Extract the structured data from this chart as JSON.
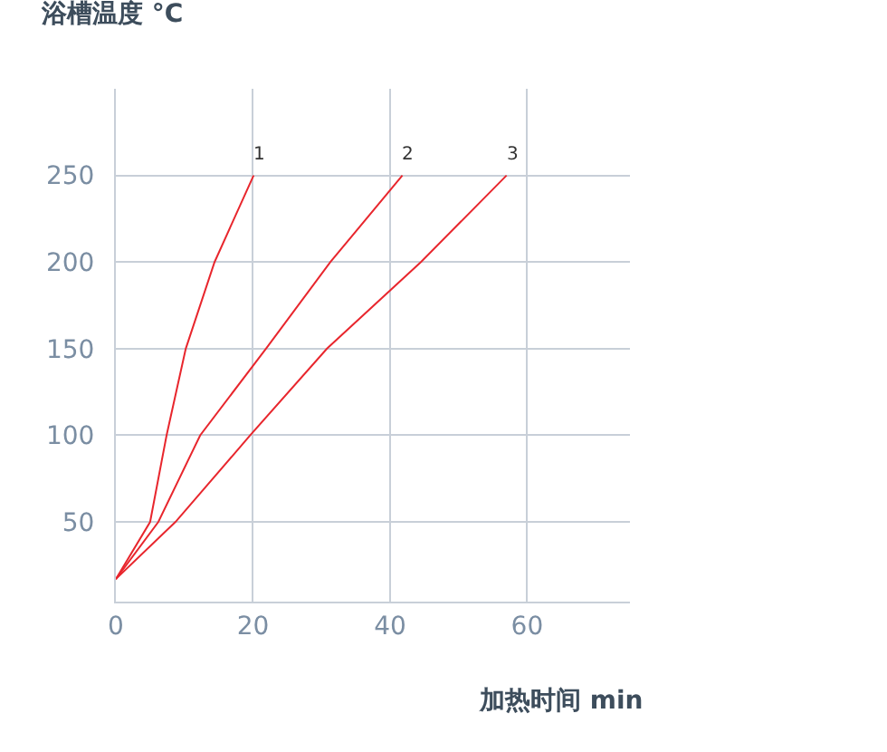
{
  "chart_data": {
    "type": "line",
    "title": "浴槽温度 °C",
    "xlabel": "加热时间 min",
    "series": [
      {
        "name": "1",
        "color": "#e8262d",
        "x": [
          0,
          5,
          7.4,
          10.2,
          14.4,
          20.1
        ],
        "values": [
          17,
          50,
          100,
          150,
          200,
          250
        ]
      },
      {
        "name": "2",
        "color": "#e8262d",
        "x": [
          0,
          6.2,
          12.3,
          21.9,
          31.3,
          41.8
        ],
        "values": [
          17,
          50,
          100,
          150,
          200,
          250
        ]
      },
      {
        "name": "3",
        "color": "#e8262d",
        "x": [
          0,
          8.7,
          19.6,
          30.8,
          44.5,
          57
        ],
        "values": [
          17,
          50,
          100,
          150,
          200,
          250
        ]
      }
    ],
    "xlim": [
      0,
      75
    ],
    "xticks": [
      0,
      20,
      40,
      60
    ],
    "ylim": [
      4,
      300
    ],
    "yticks": [
      50,
      100,
      150,
      200,
      250
    ],
    "grid": true,
    "legend": false,
    "marker": "none",
    "line_style": "solid"
  }
}
